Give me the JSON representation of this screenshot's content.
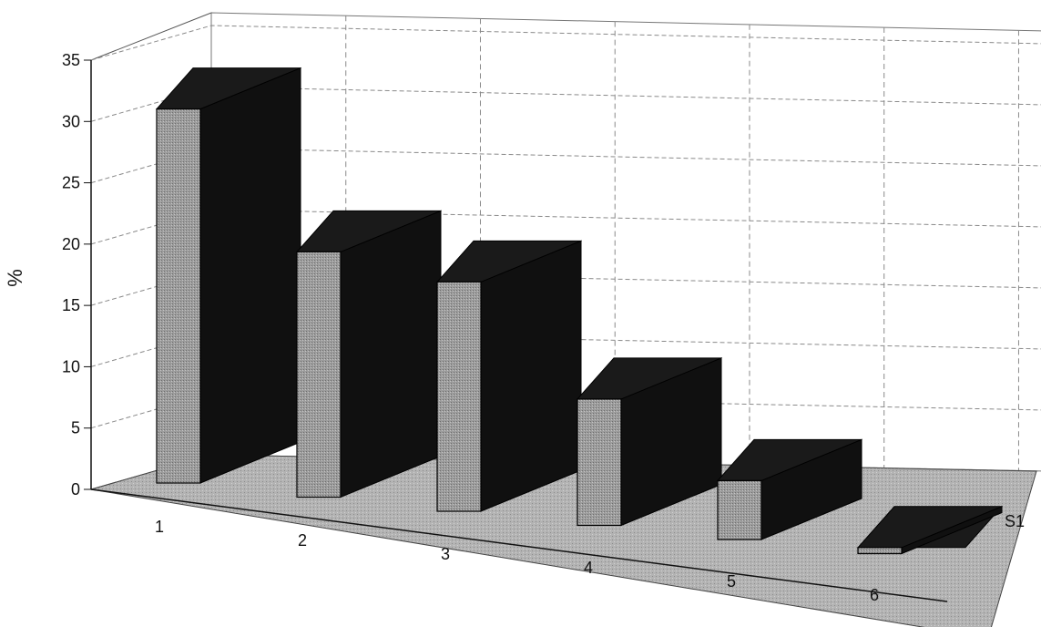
{
  "chart_data": {
    "type": "bar",
    "style": "3d-column",
    "ylabel": "%",
    "ylim": [
      0,
      35
    ],
    "yticks": [
      0,
      5,
      10,
      15,
      20,
      25,
      30,
      35
    ],
    "categories": [
      "1",
      "2",
      "3",
      "4",
      "5",
      "6"
    ],
    "series": [
      {
        "name": "S1",
        "values": [
          30.5,
          20.0,
          18.7,
          10.3,
          4.8,
          0.5
        ]
      }
    ],
    "grid": true,
    "colors": {
      "front_face": "#9a9a9a",
      "side_face": "#101010",
      "top_face": "#1a1a1a",
      "floor": "#a6a6a6",
      "gridline": "#8a8a8a"
    }
  }
}
